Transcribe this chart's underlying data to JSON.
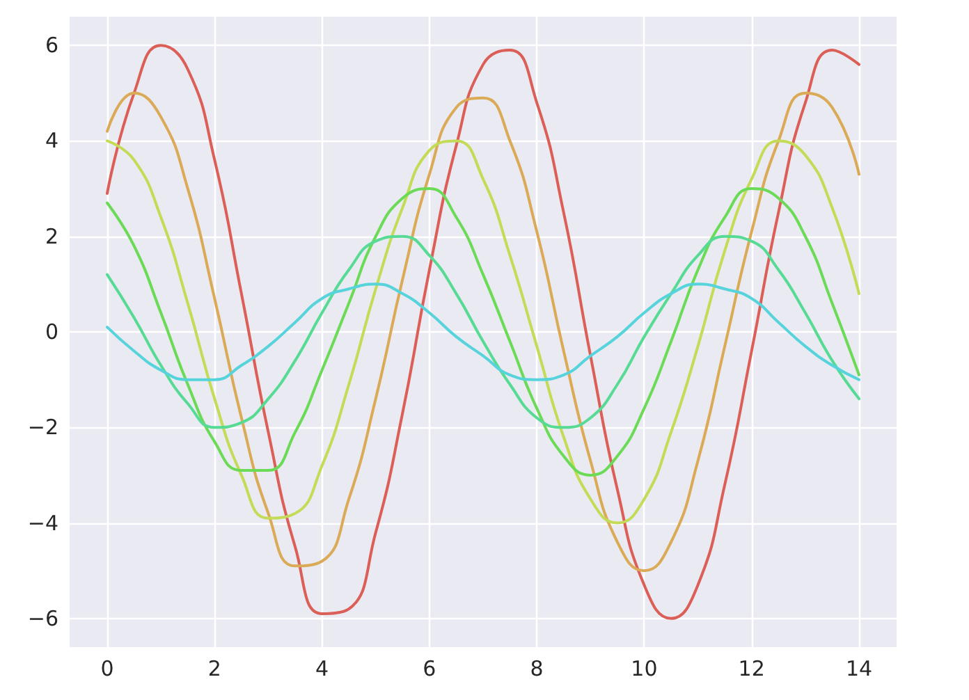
{
  "chart_data": {
    "type": "line",
    "x": [
      0,
      0.5,
      1,
      1.5,
      2,
      2.5,
      3,
      3.5,
      4,
      4.5,
      5,
      5.5,
      6,
      6.5,
      7,
      7.5,
      8,
      8.5,
      9,
      9.5,
      10,
      10.5,
      11,
      11.5,
      12,
      12.5,
      13,
      13.5,
      14
    ],
    "series": [
      {
        "color": "#db5f57",
        "values": [
          2.9,
          5.0,
          6.0,
          5.5,
          3.6,
          0.8,
          -2.1,
          -4.5,
          -5.9,
          -5.8,
          -4.2,
          -1.7,
          1.3,
          3.9,
          5.6,
          5.9,
          4.8,
          2.5,
          -0.5,
          -3.3,
          -5.3,
          -6.0,
          -5.3,
          -3.2,
          -0.4,
          2.5,
          4.8,
          5.9,
          5.6
        ]
      },
      {
        "color": "#dbaa57",
        "values": [
          4.2,
          5.0,
          4.5,
          3.0,
          0.7,
          -1.8,
          -3.8,
          -4.9,
          -4.8,
          -3.5,
          -1.4,
          1.1,
          3.3,
          4.7,
          4.9,
          4.0,
          2.1,
          -0.4,
          -2.7,
          -4.4,
          -5.0,
          -4.4,
          -2.7,
          -0.3,
          2.1,
          4.0,
          5.0,
          4.7,
          3.3
        ]
      },
      {
        "color": "#c3db57",
        "values": [
          4.0,
          3.6,
          2.4,
          0.6,
          -1.4,
          -3.0,
          -3.9,
          -3.8,
          -2.8,
          -1.1,
          0.9,
          2.6,
          3.8,
          4.0,
          3.2,
          1.6,
          -0.3,
          -2.2,
          -3.5,
          -4.0,
          -3.5,
          -2.1,
          -0.3,
          1.7,
          3.2,
          4.0,
          3.7,
          2.6,
          0.8
        ]
      },
      {
        "color": "#6bdb57",
        "values": [
          2.7,
          1.8,
          0.4,
          -1.1,
          -2.3,
          -2.9,
          -2.9,
          -2.1,
          -0.8,
          0.6,
          2.0,
          2.8,
          3.0,
          2.4,
          1.2,
          -0.2,
          -1.6,
          -2.6,
          -3.0,
          -2.6,
          -1.6,
          -0.2,
          1.3,
          2.4,
          3.0,
          2.8,
          2.0,
          0.6,
          -0.9
        ]
      },
      {
        "color": "#57db94",
        "values": [
          1.2,
          0.3,
          -0.7,
          -1.5,
          -2.0,
          -1.9,
          -1.4,
          -0.6,
          0.4,
          1.3,
          1.9,
          2.0,
          1.6,
          0.8,
          -0.2,
          -1.1,
          -1.8,
          -2.0,
          -1.8,
          -1.1,
          -0.1,
          0.8,
          1.6,
          2.0,
          1.9,
          1.3,
          0.4,
          -0.6,
          -1.4
        ]
      },
      {
        "color": "#57d3db",
        "values": [
          0.1,
          -0.4,
          -0.8,
          -1.0,
          -1.0,
          -0.7,
          -0.3,
          0.2,
          0.7,
          0.9,
          1.0,
          0.8,
          0.4,
          -0.1,
          -0.5,
          -0.9,
          -1.0,
          -0.9,
          -0.5,
          -0.1,
          0.4,
          0.8,
          1.0,
          0.9,
          0.7,
          0.2,
          -0.3,
          -0.7,
          -1.0
        ]
      }
    ],
    "xlim": [
      -0.7,
      14.7
    ],
    "ylim": [
      -6.6,
      6.6
    ],
    "xticks": [
      0,
      2,
      4,
      6,
      8,
      10,
      12,
      14
    ],
    "yticks": [
      {
        "value": -6,
        "label": "−6"
      },
      {
        "value": -4,
        "label": "−4"
      },
      {
        "value": -2,
        "label": "−2"
      },
      0,
      2,
      4,
      6
    ],
    "grid": true,
    "marker": "none",
    "line_style": "solid"
  }
}
